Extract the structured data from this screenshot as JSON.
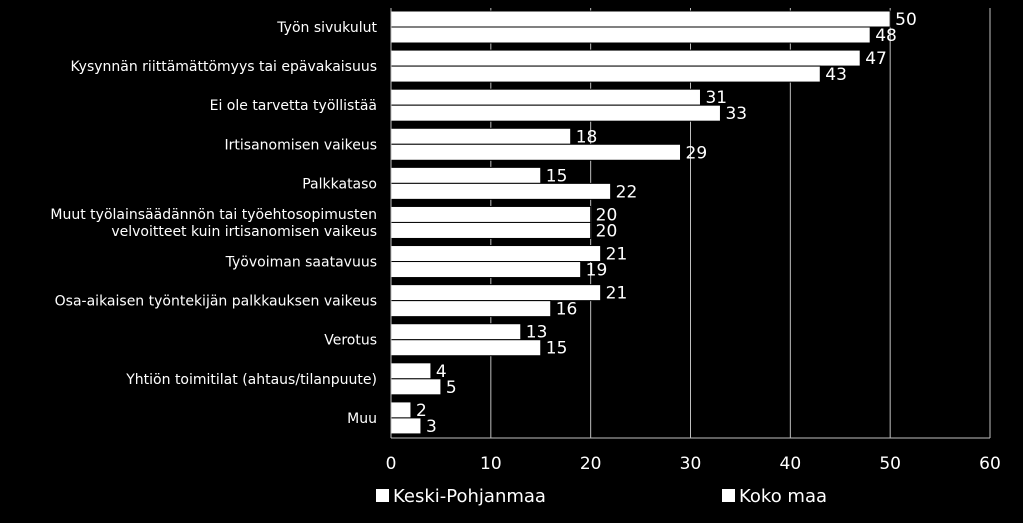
{
  "chart_data": {
    "type": "bar",
    "orientation": "horizontal",
    "title": "",
    "xlabel": "",
    "ylabel": "",
    "xlim": [
      0,
      60
    ],
    "x_ticks": [
      0,
      10,
      20,
      30,
      40,
      50,
      60
    ],
    "grid": true,
    "legend_position": "bottom",
    "categories": [
      [
        "Työn sivukulut"
      ],
      [
        "Kysynnän riittämättömyys tai epävakaisuus"
      ],
      [
        "Ei ole tarvetta työllistää"
      ],
      [
        "Irtisanomisen vaikeus"
      ],
      [
        "Palkkataso"
      ],
      [
        "Muut työlainsäädännön tai työehtosopimusten",
        "velvoitteet kuin irtisanomisen vaikeus"
      ],
      [
        "Työvoiman saatavuus"
      ],
      [
        "Osa-aikaisen työntekijän palkkauksen vaikeus"
      ],
      [
        "Verotus"
      ],
      [
        "Yhtiön toimitilat (ahtaus/tilanpuute)"
      ],
      [
        "Muu"
      ]
    ],
    "series": [
      {
        "name": "Keski-Pohjanmaa",
        "color": "#ffffff",
        "values": [
          50,
          47,
          31,
          18,
          15,
          20,
          21,
          21,
          13,
          4,
          2
        ]
      },
      {
        "name": "Koko maa",
        "color": "#ffffff",
        "values": [
          48,
          43,
          33,
          29,
          22,
          20,
          19,
          16,
          15,
          5,
          3
        ]
      }
    ]
  }
}
